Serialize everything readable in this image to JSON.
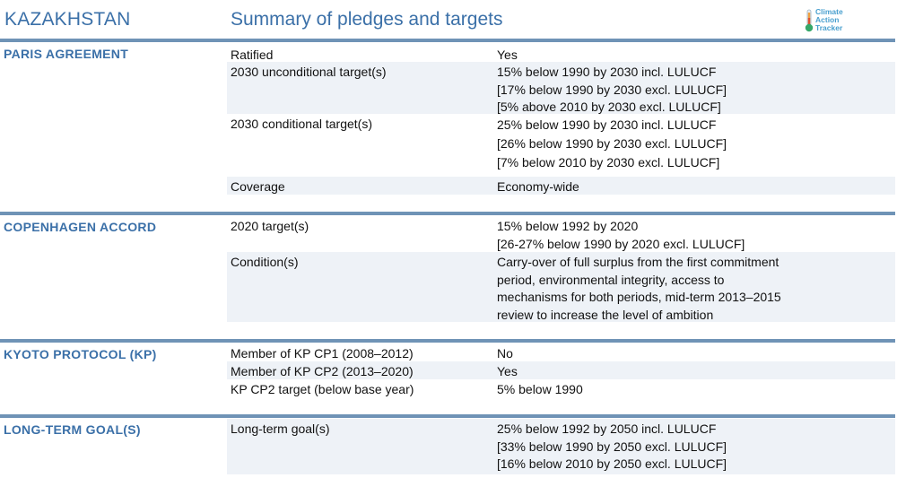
{
  "header": {
    "country": "KAZAKHSTAN",
    "subtitle": "Summary of pledges and targets",
    "logo_lines": [
      "Climate",
      "Action",
      "Tracker"
    ],
    "logo_icon": "thermometer-icon"
  },
  "colors": {
    "accent": "#3b70a8",
    "bar": "#6f93b6",
    "row_shade": "#eef2f7",
    "logo": "#4aa0cf"
  },
  "sections": [
    {
      "title": "PARIS AGREEMENT",
      "rows": [
        {
          "label": "Ratified",
          "values": [
            "Yes"
          ]
        },
        {
          "label": "2030 unconditional target(s)",
          "values": [
            "15% below 1990 by 2030 incl. LULUCF",
            "[17% below 1990 by 2030 excl. LULUCF]",
            "[5% above 2010 by 2030 excl. LULUCF]"
          ]
        },
        {
          "label": "2030 conditional target(s)",
          "values": [
            "25% below 1990 by 2030 incl. LULUCF",
            "[26% below 1990 by 2030 excl. LULUCF]",
            "[7% below 2010 by 2030 excl. LULUCF]"
          ]
        },
        {
          "label": "Coverage",
          "values": [
            "Economy-wide"
          ]
        }
      ]
    },
    {
      "title": "COPENHAGEN ACCORD",
      "rows": [
        {
          "label": "2020 target(s)",
          "values": [
            "15% below 1992 by 2020",
            "[26-27% below 1990 by 2020 excl. LULUCF]"
          ]
        },
        {
          "label": "Condition(s)",
          "values": [
            "Carry-over of full surplus from the first commitment",
            "period, environmental integrity, access to",
            "mechanisms for both periods, mid-term 2013–2015",
            "review to increase the level of ambition"
          ]
        }
      ]
    },
    {
      "title": "KYOTO PROTOCOL (KP)",
      "rows": [
        {
          "label": "Member of KP CP1 (2008–2012)",
          "values": [
            "No"
          ]
        },
        {
          "label": "Member of KP CP2 (2013–2020)",
          "values": [
            "Yes"
          ]
        },
        {
          "label": "KP CP2 target (below base year)",
          "values": [
            "5% below 1990"
          ]
        }
      ]
    },
    {
      "title": "LONG-TERM GOAL(S)",
      "rows": [
        {
          "label": "Long-term goal(s)",
          "values": [
            "25% below 1992 by 2050 incl. LULUCF",
            "[33% below 1990 by 2050 excl. LULUCF]",
            "[16% below 2010 by 2050 excl. LULUCF]"
          ]
        }
      ]
    }
  ]
}
